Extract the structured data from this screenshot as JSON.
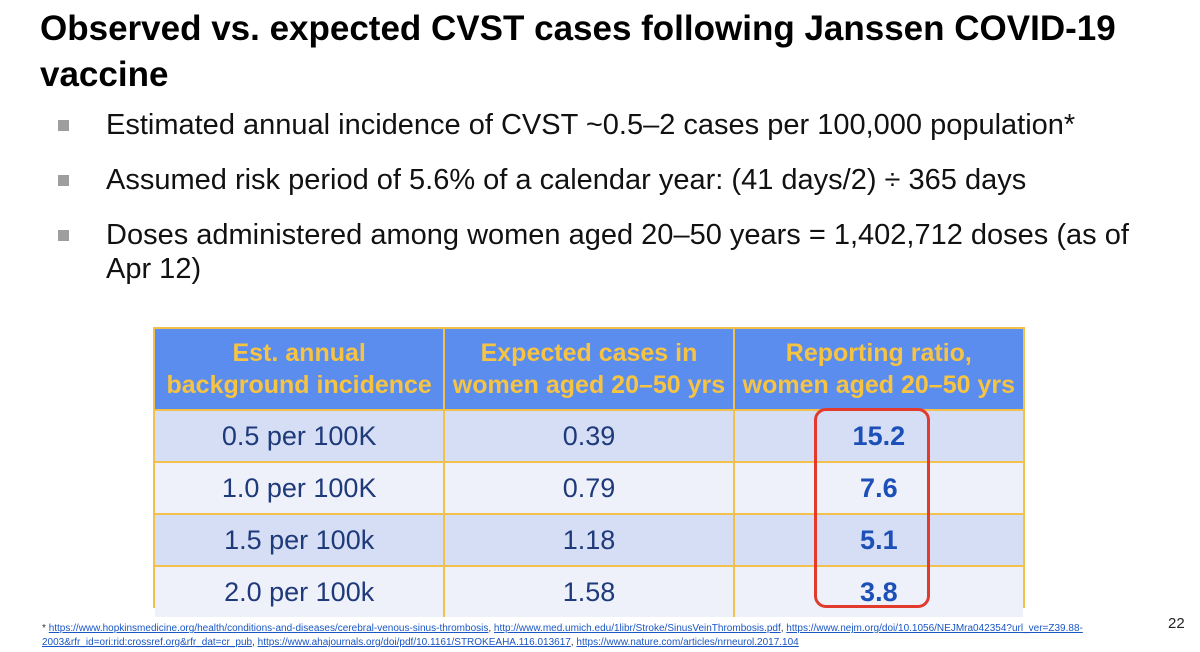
{
  "slide": {
    "title": "Observed vs. expected CVST cases following Janssen COVID-19 vaccine",
    "page_number": "22"
  },
  "bullets": [
    {
      "text": "Estimated annual incidence of CVST ~0.5–2 cases per 100,000 population*"
    },
    {
      "text": "Assumed risk period of 5.6% of a calendar year: (41 days/2) ÷ 365 days"
    },
    {
      "text": "Doses administered among women aged 20–50 years = 1,402,712 doses (as of Apr 12)"
    }
  ],
  "table": {
    "headers": [
      {
        "line1": "Est. annual",
        "line2": "background incidence"
      },
      {
        "line1": "Expected cases in",
        "line2": "women aged 20–50 yrs"
      },
      {
        "line1": "Reporting ratio,",
        "line2": "women aged 20–50 yrs"
      }
    ],
    "rows": [
      {
        "incidence": "0.5 per 100K",
        "expected": "0.39",
        "ratio": "15.2"
      },
      {
        "incidence": "1.0 per 100K",
        "expected": "0.79",
        "ratio": "7.6"
      },
      {
        "incidence": "1.5 per 100k",
        "expected": "1.18",
        "ratio": "5.1"
      },
      {
        "incidence": "2.0 per 100k",
        "expected": "1.58",
        "ratio": "3.8"
      }
    ]
  },
  "footnote": {
    "star": "*",
    "links": [
      "https://www.hopkinsmedicine.org/health/conditions-and-diseases/cerebral-venous-sinus-thrombosis",
      "http://www.med.umich.edu/1libr/Stroke/SinusVeinThrombosis.pdf",
      "https://www.nejm.org/doi/10.1056/NEJMra042354?url_ver=Z39.88-2003&rfr_id=ori:rid:crossref.org&rfr_dat=cr_pub",
      "https://www.ahajournals.org/doi/pdf/10.1161/STROKEAHA.116.013617",
      "https://www.nature.com/articles/nrneurol.2017.104"
    ]
  },
  "colors": {
    "header_bg": "#5b8def",
    "header_text": "#f6c343",
    "highlight": "#e23b2e"
  }
}
